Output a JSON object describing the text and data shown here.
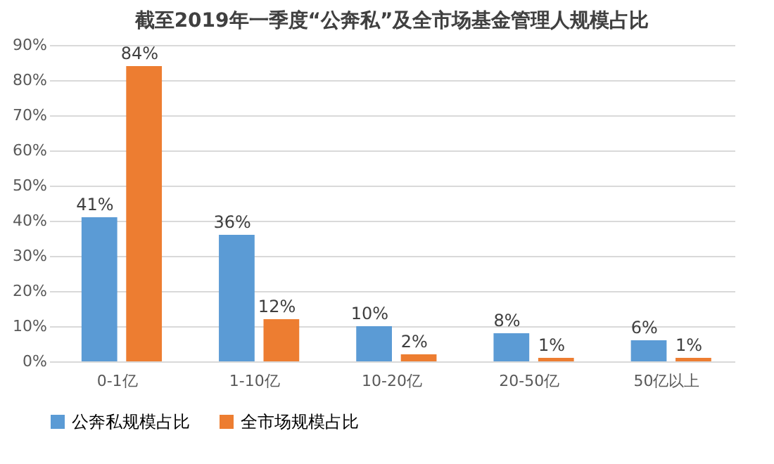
{
  "chart_data": {
    "type": "bar",
    "title": "截至2019年一季度“公奔私”及全市场基金管理人规模占比",
    "categories": [
      "0-1亿",
      "1-10亿",
      "10-20亿",
      "20-50亿",
      "50亿以上"
    ],
    "series": [
      {
        "name": "公奔私规模占比",
        "color": "#5b9bd5",
        "values": [
          41,
          36,
          10,
          8,
          6
        ],
        "value_labels": [
          "41%",
          "36%",
          "10%",
          "8%",
          "6%"
        ]
      },
      {
        "name": "全市场规模占比",
        "color": "#ed7d31",
        "values": [
          84,
          12,
          2,
          1,
          1
        ],
        "value_labels": [
          "84%",
          "12%",
          "2%",
          "1%",
          "1%"
        ]
      }
    ],
    "ylim": [
      0,
      90
    ],
    "yticks": [
      {
        "value": 0,
        "label": "0%"
      },
      {
        "value": 10,
        "label": "10%"
      },
      {
        "value": 20,
        "label": "20%"
      },
      {
        "value": 30,
        "label": "30%"
      },
      {
        "value": 40,
        "label": "40%"
      },
      {
        "value": 50,
        "label": "50%"
      },
      {
        "value": 60,
        "label": "60%"
      },
      {
        "value": 70,
        "label": "70%"
      },
      {
        "value": 80,
        "label": "80%"
      },
      {
        "value": 90,
        "label": "90%"
      }
    ],
    "grid": "y",
    "legend": "bottom"
  }
}
